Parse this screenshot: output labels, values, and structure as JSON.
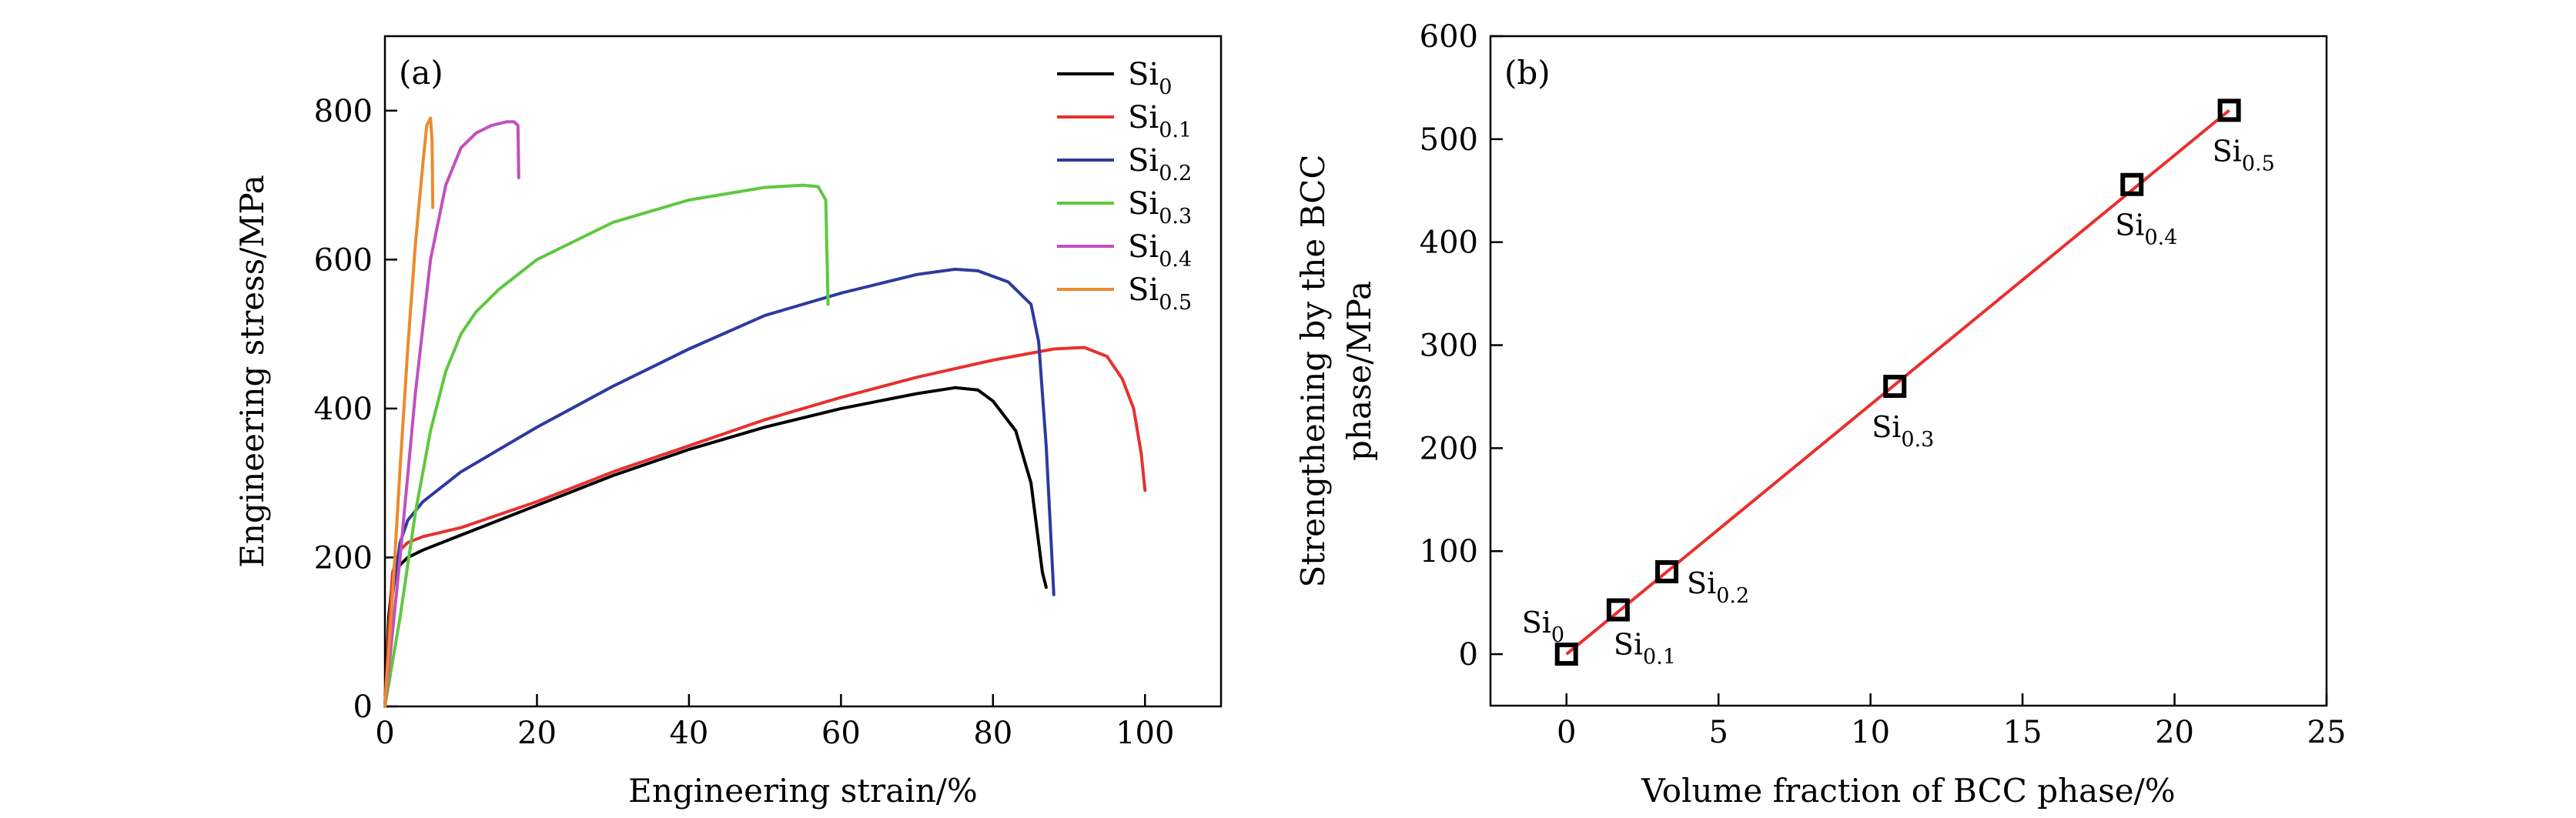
{
  "chart_data": [
    {
      "panel": "(a)",
      "type": "line",
      "xlabel": "Engineering strain/%",
      "ylabel": "Engineering stress/MPa",
      "xlim": [
        0,
        110
      ],
      "ylim": [
        0,
        900
      ],
      "xticks": [
        0,
        20,
        40,
        60,
        80,
        100
      ],
      "yticks": [
        0,
        200,
        400,
        600,
        800
      ],
      "legend_position": "top-right",
      "series": [
        {
          "name": "Si",
          "sub": "0",
          "color": "#000000",
          "x": [
            0,
            0.5,
            1,
            2,
            3,
            5,
            10,
            20,
            30,
            40,
            50,
            60,
            70,
            75,
            78,
            80,
            83,
            85,
            86,
            86.5,
            87
          ],
          "y": [
            0,
            120,
            170,
            190,
            200,
            210,
            230,
            270,
            310,
            345,
            375,
            400,
            420,
            428,
            425,
            410,
            370,
            300,
            220,
            180,
            160
          ]
        },
        {
          "name": "Si",
          "sub": "0.1",
          "color": "#e8302e",
          "x": [
            0,
            0.5,
            1,
            2,
            3,
            5,
            10,
            20,
            30,
            40,
            50,
            60,
            70,
            80,
            88,
            92,
            95,
            97,
            98.5,
            99.5,
            100
          ],
          "y": [
            0,
            100,
            180,
            210,
            220,
            228,
            240,
            275,
            315,
            350,
            385,
            415,
            442,
            465,
            480,
            482,
            470,
            440,
            400,
            340,
            290
          ]
        },
        {
          "name": "Si",
          "sub": "0.2",
          "color": "#2d3aa0",
          "x": [
            0,
            1,
            2,
            3,
            5,
            10,
            20,
            30,
            40,
            50,
            60,
            70,
            75,
            78,
            82,
            85,
            86,
            87,
            87.5,
            88
          ],
          "y": [
            0,
            150,
            220,
            250,
            275,
            315,
            375,
            430,
            480,
            525,
            555,
            580,
            587,
            585,
            570,
            540,
            490,
            350,
            250,
            150
          ]
        },
        {
          "name": "Si",
          "sub": "0.3",
          "color": "#5ec840",
          "x": [
            0,
            2,
            4,
            6,
            8,
            10,
            12,
            15,
            20,
            30,
            40,
            50,
            55,
            57,
            58,
            58.3
          ],
          "y": [
            0,
            120,
            260,
            370,
            450,
            500,
            530,
            560,
            600,
            650,
            680,
            697,
            700,
            698,
            680,
            540
          ]
        },
        {
          "name": "Si",
          "sub": "0.4",
          "color": "#c050c0",
          "x": [
            0,
            2,
            4,
            6,
            8,
            10,
            12,
            14,
            16,
            17,
            17.5,
            17.6
          ],
          "y": [
            0,
            200,
            420,
            600,
            700,
            750,
            770,
            780,
            785,
            785,
            780,
            710
          ]
        },
        {
          "name": "Si",
          "sub": "0.5",
          "color": "#ec8a2c",
          "x": [
            0,
            1,
            2,
            3,
            4,
            5,
            5.5,
            6,
            6.2,
            6.3
          ],
          "y": [
            0,
            150,
            320,
            480,
            620,
            730,
            780,
            790,
            760,
            670
          ]
        }
      ]
    },
    {
      "panel": "(b)",
      "type": "scatter",
      "xlabel": "Volume fraction of BCC phase/%",
      "ylabel_line1": "Strengthening by the BCC",
      "ylabel_line2": "phase/MPa",
      "xlim": [
        -2.5,
        25
      ],
      "ylim": [
        -50,
        600
      ],
      "xticks": [
        0,
        5,
        10,
        15,
        20,
        25
      ],
      "yticks": [
        0,
        100,
        200,
        300,
        400,
        500,
        600
      ],
      "fit_line": {
        "color": "#e8302e",
        "x": [
          0,
          21.8
        ],
        "y": [
          0,
          528
        ]
      },
      "points": [
        {
          "name": "Si",
          "sub": "0",
          "x": 0,
          "y": 0
        },
        {
          "name": "Si",
          "sub": "0.1",
          "x": 1.7,
          "y": 43
        },
        {
          "name": "Si",
          "sub": "0.2",
          "x": 3.3,
          "y": 80
        },
        {
          "name": "Si",
          "sub": "0.3",
          "x": 10.8,
          "y": 260
        },
        {
          "name": "Si",
          "sub": "0.4",
          "x": 18.6,
          "y": 456
        },
        {
          "name": "Si",
          "sub": "0.5",
          "x": 21.8,
          "y": 528
        }
      ]
    }
  ]
}
